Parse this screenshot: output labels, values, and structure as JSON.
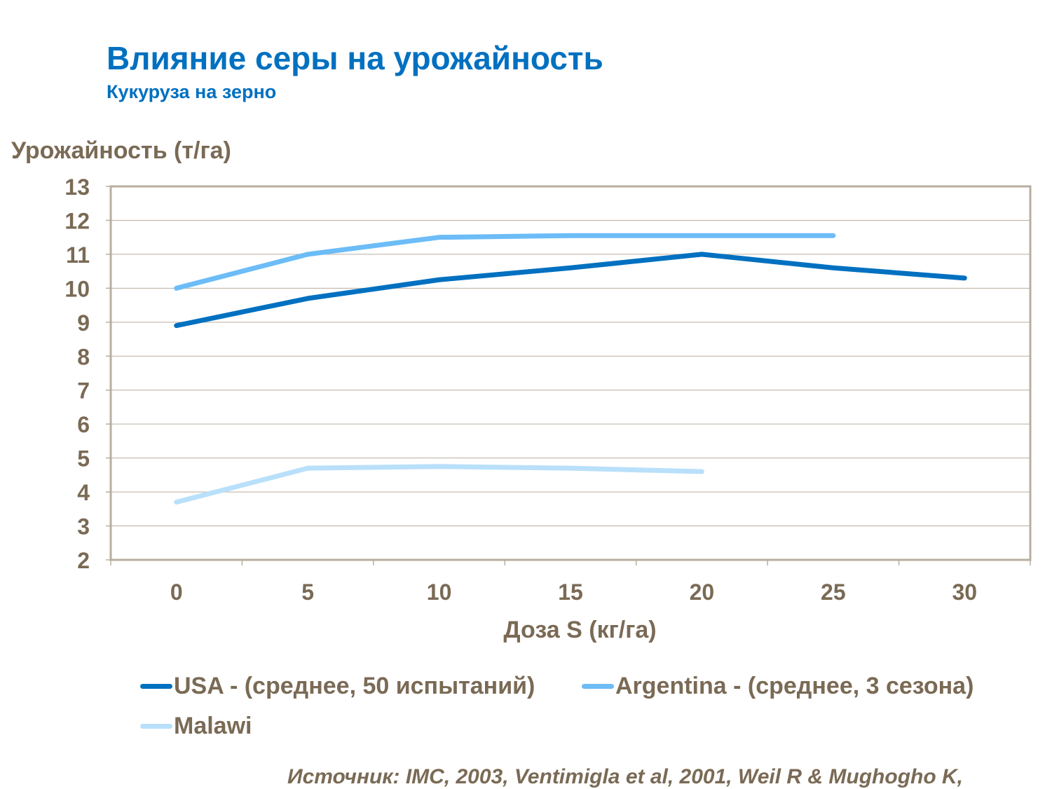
{
  "title": "Влияние серы на урожайность",
  "subtitle": "Кукуруза на зерно",
  "source": "Источник: IMC, 2003, Ventimigla  et al, 2001, Weil R & Mughogho K,",
  "chart_data": {
    "type": "line",
    "ylabel": "Урожайность (т/га)",
    "xlabel": "Доза S (кг/га)",
    "categories": [
      "0",
      "5",
      "10",
      "15",
      "20",
      "25",
      "30"
    ],
    "ylim": [
      2,
      13
    ],
    "yticks": [
      "2",
      "3",
      "4",
      "5",
      "6",
      "7",
      "8",
      "9",
      "10",
      "11",
      "12",
      "13"
    ],
    "grid": true,
    "legend_position": "bottom",
    "series": [
      {
        "name": "USA - (среднее, 50 испытаний)",
        "color": "#0070c0",
        "values": [
          8.9,
          9.7,
          10.25,
          10.6,
          11.0,
          10.6,
          10.3
        ]
      },
      {
        "name": "Argentina - (среднее, 3 сезона)",
        "color": "#6cbcf7",
        "values": [
          10.0,
          11.0,
          11.5,
          11.55,
          11.55,
          11.55,
          null
        ]
      },
      {
        "name": "Malawi",
        "color": "#b9e0fb",
        "values": [
          3.7,
          4.7,
          4.75,
          4.7,
          4.6,
          null,
          null
        ]
      }
    ]
  }
}
